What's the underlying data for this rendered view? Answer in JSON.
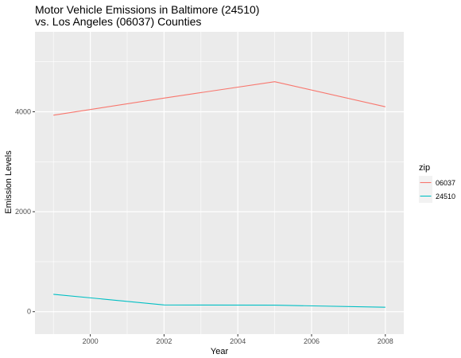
{
  "chart_data": {
    "type": "line",
    "title": "Motor Vehicle Emissions in Baltimore (24510)",
    "subtitle": "vs. Los Angeles (06037) Counties",
    "xlabel": "Year",
    "ylabel": "Emission Levels",
    "xlim": [
      1998.5,
      2008.5
    ],
    "ylim": [
      -450,
      5600
    ],
    "x_ticks": [
      2000,
      2002,
      2004,
      2006,
      2008
    ],
    "x_tick_labels": [
      "2000",
      "2002",
      "2004",
      "2006",
      "2008"
    ],
    "y_ticks": [
      0,
      2000,
      4000
    ],
    "y_tick_labels": [
      "0",
      "2000",
      "4000"
    ],
    "grid": true,
    "legend": {
      "title": "zip",
      "placement": "right"
    },
    "series": [
      {
        "name": "06037",
        "color": "#f8766d",
        "x": [
          1999,
          2002,
          2005,
          2008
        ],
        "y": [
          3931,
          4274,
          4601,
          4101
        ]
      },
      {
        "name": "24510",
        "color": "#00bfc4",
        "x": [
          1999,
          2002,
          2005,
          2008
        ],
        "y": [
          347,
          134,
          130,
          88
        ]
      }
    ],
    "panel_background": "#ebebeb",
    "gridline_color": "#ffffff"
  }
}
